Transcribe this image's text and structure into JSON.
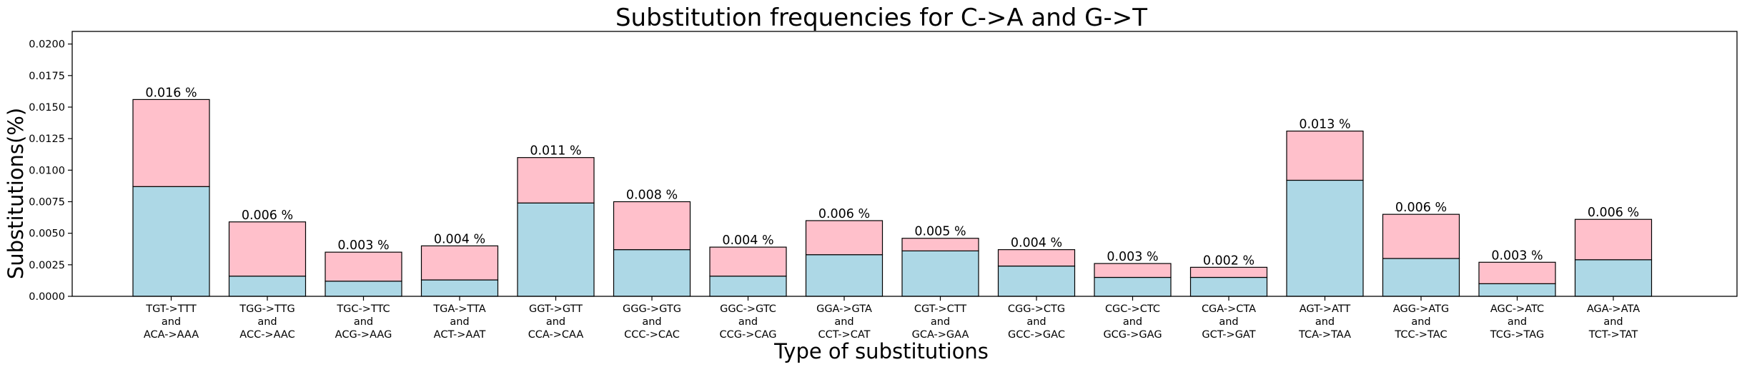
{
  "chart_data": {
    "type": "bar",
    "stacked": true,
    "title": "Substitution frequencies for C->A and G->T",
    "xlabel": "Type of substitutions",
    "ylabel": "Substitutions(%)",
    "ylim": [
      0,
      0.021
    ],
    "yticks": [
      "0.0000",
      "0.0025",
      "0.0050",
      "0.0075",
      "0.0100",
      "0.0125",
      "0.0150",
      "0.0175",
      "0.0200"
    ],
    "ytick_values": [
      0,
      0.0025,
      0.005,
      0.0075,
      0.01,
      0.0125,
      0.015,
      0.0175,
      0.02
    ],
    "grid": false,
    "categories": [
      [
        "TGT->TTT",
        "and",
        "ACA->AAA"
      ],
      [
        "TGG->TTG",
        "and",
        "ACC->AAC"
      ],
      [
        "TGC->TTC",
        "and",
        "ACG->AAG"
      ],
      [
        "TGA->TTA",
        "and",
        "ACT->AAT"
      ],
      [
        "GGT->GTT",
        "and",
        "CCA->CAA"
      ],
      [
        "GGG->GTG",
        "and",
        "CCC->CAC"
      ],
      [
        "GGC->GTC",
        "and",
        "CCG->CAG"
      ],
      [
        "GGA->GTA",
        "and",
        "CCT->CAT"
      ],
      [
        "CGT->CTT",
        "and",
        "GCA->GAA"
      ],
      [
        "CGG->CTG",
        "and",
        "GCC->GAC"
      ],
      [
        "CGC->CTC",
        "and",
        "GCG->GAG"
      ],
      [
        "CGA->CTA",
        "and",
        "GCT->GAT"
      ],
      [
        "AGT->ATT",
        "and",
        "TCA->TAA"
      ],
      [
        "AGG->ATG",
        "and",
        "TCC->TAC"
      ],
      [
        "AGC->ATC",
        "and",
        "TCG->TAG"
      ],
      [
        "AGA->ATA",
        "and",
        "TCT->TAT"
      ]
    ],
    "series": [
      {
        "color": "#add8e6",
        "values": [
          0.0087,
          0.0016,
          0.0012,
          0.0013,
          0.0074,
          0.0037,
          0.0016,
          0.0033,
          0.0036,
          0.0024,
          0.0015,
          0.0015,
          0.0092,
          0.003,
          0.001,
          0.0029
        ]
      },
      {
        "color": "#ffc0cb",
        "values": [
          0.0069,
          0.0043,
          0.0023,
          0.0027,
          0.0036,
          0.0038,
          0.0023,
          0.0027,
          0.001,
          0.0013,
          0.0011,
          0.0008,
          0.0039,
          0.0035,
          0.0017,
          0.0032
        ]
      }
    ],
    "data_labels": [
      "0.016 %",
      "0.006 %",
      "0.003 %",
      "0.004 %",
      "0.011 %",
      "0.008 %",
      "0.004 %",
      "0.006 %",
      "0.005 %",
      "0.004 %",
      "0.003 %",
      "0.002 %",
      "0.013 %",
      "0.006 %",
      "0.003 %",
      "0.006 %"
    ],
    "colors": {
      "edge": "#000000",
      "background": "#ffffff"
    }
  }
}
